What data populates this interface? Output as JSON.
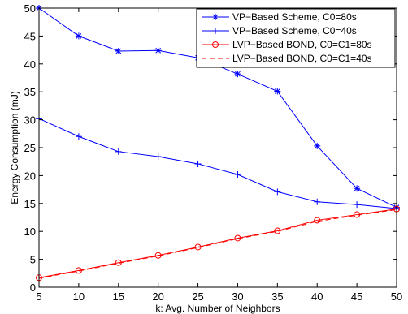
{
  "chart_data": {
    "type": "line",
    "title": "",
    "xlabel": "k: Avg. Number of Neighbors",
    "ylabel": "Energy Consumption (mJ)",
    "xlim": [
      5,
      50
    ],
    "ylim": [
      0,
      50
    ],
    "xticks": [
      5,
      10,
      15,
      20,
      25,
      30,
      35,
      40,
      45,
      50
    ],
    "yticks": [
      0,
      5,
      10,
      15,
      20,
      25,
      30,
      35,
      40,
      45,
      50
    ],
    "grid": false,
    "legend_position": "top-right",
    "x": [
      5,
      10,
      15,
      20,
      25,
      30,
      35,
      40,
      45,
      50
    ],
    "series": [
      {
        "name": "VP−Based Scheme, C0=80s",
        "values": [
          50.0,
          45.0,
          42.3,
          42.4,
          41.1,
          38.2,
          35.1,
          25.3,
          17.7,
          14.3
        ],
        "color": "#0000ff",
        "line_style": "solid",
        "marker": "star"
      },
      {
        "name": "VP−Based Scheme, C0=40s",
        "values": [
          30.2,
          27.0,
          24.3,
          23.4,
          22.1,
          20.2,
          17.1,
          15.3,
          14.8,
          14.1
        ],
        "color": "#0000ff",
        "line_style": "solid",
        "marker": "plus"
      },
      {
        "name": "LVP−Based BOND, C0=C1=80s",
        "values": [
          1.7,
          3.0,
          4.4,
          5.7,
          7.2,
          8.8,
          10.1,
          12.0,
          13.0,
          14.0
        ],
        "color": "#ff0000",
        "line_style": "solid",
        "marker": "circle"
      },
      {
        "name": "LVP−Based BOND, C0=C1=40s",
        "values": [
          1.6,
          2.9,
          4.3,
          5.6,
          7.1,
          8.7,
          10.0,
          11.8,
          12.9,
          13.9
        ],
        "color": "#ff0000",
        "line_style": "dashed",
        "marker": "none"
      }
    ]
  }
}
